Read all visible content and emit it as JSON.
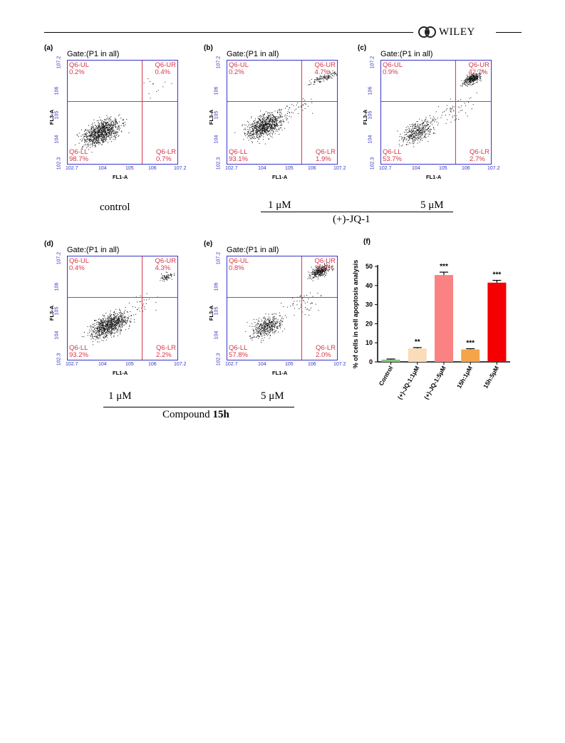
{
  "header": {
    "publisher": "WILEY"
  },
  "panels": [
    {
      "letter": "(a)",
      "gate": "Gate:(P1 in all)",
      "ul": [
        "Q6-UL",
        "0.2%"
      ],
      "ur": [
        "Q6-UR",
        "0.4%"
      ],
      "ll": [
        "Q6-LL",
        "98.7%"
      ],
      "lr": [
        "Q6-LR",
        "0.7%"
      ]
    },
    {
      "letter": "(b)",
      "gate": "Gate:(P1 in all)",
      "ul": [
        "Q6-UL",
        "0.2%"
      ],
      "ur": [
        "Q6-UR",
        "4.7%"
      ],
      "ll": [
        "Q6-LL",
        "93.1%"
      ],
      "lr": [
        "Q6-LR",
        "1.9%"
      ]
    },
    {
      "letter": "(c)",
      "gate": "Gate:(P1 in all)",
      "ul": [
        "Q6-UL",
        "0.9%"
      ],
      "ur": [
        "Q6-UR",
        "42.7%"
      ],
      "ll": [
        "Q6-LL",
        "53.7%"
      ],
      "lr": [
        "Q6-LR",
        "2.7%"
      ]
    },
    {
      "letter": "(d)",
      "gate": "Gate:(P1 in all)",
      "ul": [
        "Q6-UL",
        "0.4%"
      ],
      "ur": [
        "Q6-UR",
        "4.3%"
      ],
      "ll": [
        "Q6-LL",
        "93.2%"
      ],
      "lr": [
        "Q6-LR",
        "2.2%"
      ]
    },
    {
      "letter": "(e)",
      "gate": "Gate:(P1 in all)",
      "ul": [
        "Q6-UL",
        "0.8%"
      ],
      "ur": [
        "Q6-UR",
        "39.3%"
      ],
      "ll": [
        "Q6-LL",
        "57.8%"
      ],
      "lr": [
        "Q6-LR",
        "2.0%"
      ]
    }
  ],
  "axis": {
    "x": "FL1-A",
    "y": "FL3-A",
    "xticks": [
      "10^2.7",
      "10^4",
      "10^5",
      "10^6",
      "10^7.2"
    ],
    "yticks": [
      "10^7.2",
      "10^6",
      "10^5",
      "10^4",
      "10^2.3"
    ]
  },
  "captions": {
    "control": "control",
    "jq_1uM": "1 μM",
    "jq_5uM": "5 μM",
    "jq_group": "(+)-JQ-1",
    "c15_1uM": "1 μM",
    "c15_5uM": "5 μM",
    "c15_group_prefix": "Compound",
    "c15_group_bold": "15h"
  },
  "chart_data": {
    "type": "bar",
    "panel_letter": "(f)",
    "categories": [
      "Control",
      "(+)-JQ-1:1μM",
      "(+)-JQ-1:5μM",
      "15h:1μM",
      "15h:5μM"
    ],
    "values": [
      1.2,
      7.0,
      45.5,
      6.5,
      41.5
    ],
    "errors": [
      0.3,
      0.5,
      1.5,
      0.4,
      1.2
    ],
    "significance": [
      "",
      "**",
      "***",
      "***",
      "***"
    ],
    "colors": [
      "#86c486",
      "#fadcb8",
      "#fb8282",
      "#f5a44a",
      "#f40000"
    ],
    "ylabel": "% of cells in cell apoptosis analysis",
    "ylim": [
      0,
      50
    ],
    "yticks": [
      0,
      10,
      20,
      30,
      40,
      50
    ]
  }
}
